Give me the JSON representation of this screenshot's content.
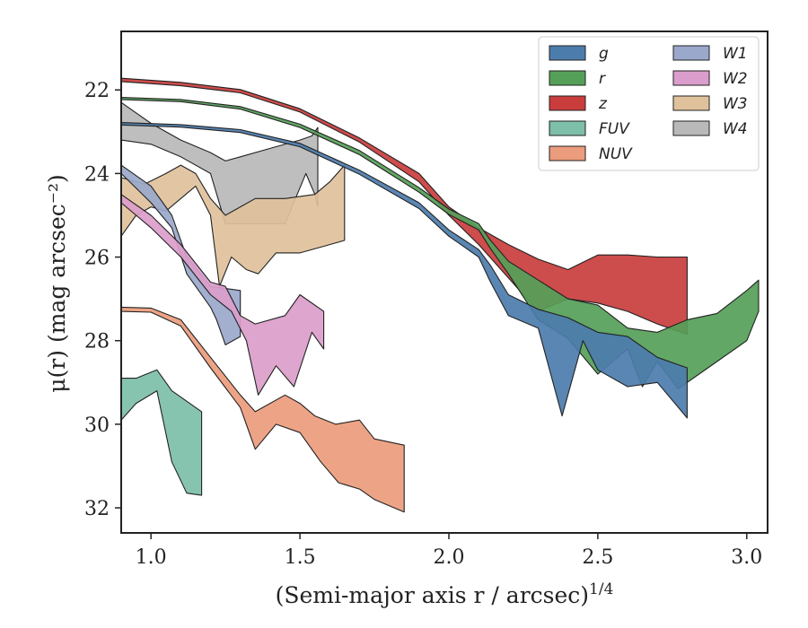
{
  "chart_data": {
    "type": "area",
    "title": "",
    "xlabel": "(Semi-major axis r / arcsec)",
    "xlabel_exponent": "1/4",
    "ylabel": "μ(r) (mag arcsec⁻²)",
    "xlim": [
      0.9,
      3.07
    ],
    "ylim": [
      32.6,
      20.6
    ],
    "y_inverted": true,
    "xticks": [
      "1.0",
      "1.5",
      "2.0",
      "2.5",
      "3.0"
    ],
    "xtick_values": [
      1.0,
      1.5,
      2.0,
      2.5,
      3.0
    ],
    "yticks": [
      "22",
      "24",
      "26",
      "28",
      "30",
      "32"
    ],
    "ytick_values": [
      22,
      24,
      26,
      28,
      30,
      32
    ],
    "grid": false,
    "legend_position": "top-right",
    "legend_columns": 2,
    "series": [
      {
        "name": "g",
        "color": "#4c7cac",
        "upper": [
          [
            0.9,
            22.78
          ],
          [
            1.1,
            22.83
          ],
          [
            1.3,
            22.95
          ],
          [
            1.5,
            23.28
          ],
          [
            1.7,
            23.92
          ],
          [
            1.9,
            24.7
          ],
          [
            2.0,
            25.35
          ],
          [
            2.1,
            25.82
          ],
          [
            2.14,
            26.2
          ],
          [
            2.2,
            26.9
          ],
          [
            2.3,
            27.25
          ],
          [
            2.4,
            27.45
          ],
          [
            2.5,
            27.8
          ],
          [
            2.6,
            27.9
          ],
          [
            2.7,
            28.4
          ],
          [
            2.8,
            28.65
          ]
        ],
        "lower": [
          [
            0.9,
            22.84
          ],
          [
            1.1,
            22.89
          ],
          [
            1.3,
            23.02
          ],
          [
            1.5,
            23.36
          ],
          [
            1.7,
            24.02
          ],
          [
            1.9,
            24.84
          ],
          [
            2.0,
            25.5
          ],
          [
            2.1,
            26.0
          ],
          [
            2.14,
            26.6
          ],
          [
            2.2,
            27.4
          ],
          [
            2.3,
            27.7
          ],
          [
            2.38,
            29.8
          ],
          [
            2.45,
            28.0
          ],
          [
            2.5,
            28.7
          ],
          [
            2.6,
            29.1
          ],
          [
            2.7,
            29.0
          ],
          [
            2.8,
            29.85
          ]
        ]
      },
      {
        "name": "r",
        "color": "#55a058",
        "upper": [
          [
            0.9,
            22.18
          ],
          [
            1.1,
            22.23
          ],
          [
            1.3,
            22.4
          ],
          [
            1.5,
            22.82
          ],
          [
            1.7,
            23.45
          ],
          [
            1.9,
            24.34
          ],
          [
            2.0,
            24.85
          ],
          [
            2.1,
            25.2
          ],
          [
            2.14,
            25.6
          ],
          [
            2.2,
            26.1
          ],
          [
            2.3,
            26.55
          ],
          [
            2.4,
            27.0
          ],
          [
            2.5,
            27.15
          ],
          [
            2.6,
            27.7
          ],
          [
            2.7,
            27.8
          ],
          [
            2.8,
            27.5
          ],
          [
            2.9,
            27.35
          ],
          [
            3.0,
            26.8
          ],
          [
            3.04,
            26.55
          ]
        ],
        "lower": [
          [
            0.9,
            22.23
          ],
          [
            1.1,
            22.28
          ],
          [
            1.3,
            22.46
          ],
          [
            1.5,
            22.9
          ],
          [
            1.7,
            23.55
          ],
          [
            1.9,
            24.45
          ],
          [
            2.0,
            24.98
          ],
          [
            2.1,
            25.35
          ],
          [
            2.14,
            25.8
          ],
          [
            2.2,
            26.4
          ],
          [
            2.3,
            27.5
          ],
          [
            2.4,
            27.95
          ],
          [
            2.5,
            28.8
          ],
          [
            2.6,
            28.2
          ],
          [
            2.65,
            29.1
          ],
          [
            2.7,
            28.5
          ],
          [
            2.77,
            29.15
          ],
          [
            2.9,
            28.5
          ],
          [
            3.0,
            28.0
          ],
          [
            3.04,
            27.3
          ]
        ]
      },
      {
        "name": "z",
        "color": "#c93d3d",
        "upper": [
          [
            0.9,
            21.72
          ],
          [
            1.1,
            21.82
          ],
          [
            1.3,
            21.99
          ],
          [
            1.5,
            22.45
          ],
          [
            1.7,
            23.15
          ],
          [
            1.9,
            24.0
          ],
          [
            2.0,
            24.8
          ],
          [
            2.1,
            25.3
          ],
          [
            2.2,
            25.7
          ],
          [
            2.3,
            26.05
          ],
          [
            2.4,
            26.3
          ],
          [
            2.5,
            25.95
          ],
          [
            2.6,
            25.95
          ],
          [
            2.7,
            26.0
          ],
          [
            2.8,
            26.0
          ]
        ],
        "lower": [
          [
            0.9,
            21.8
          ],
          [
            1.1,
            21.9
          ],
          [
            1.3,
            22.07
          ],
          [
            1.5,
            22.53
          ],
          [
            1.7,
            23.25
          ],
          [
            1.9,
            24.2
          ],
          [
            2.0,
            25.0
          ],
          [
            2.1,
            25.7
          ],
          [
            2.2,
            26.5
          ],
          [
            2.3,
            27.3
          ],
          [
            2.4,
            27.0
          ],
          [
            2.5,
            27.1
          ],
          [
            2.6,
            27.3
          ],
          [
            2.7,
            27.6
          ],
          [
            2.8,
            27.85
          ]
        ]
      },
      {
        "name": "FUV",
        "color": "#7dbfa8",
        "upper": [
          [
            0.9,
            28.9
          ],
          [
            0.95,
            28.9
          ],
          [
            1.02,
            28.7
          ],
          [
            1.07,
            29.2
          ],
          [
            1.17,
            29.7
          ]
        ],
        "lower": [
          [
            0.9,
            29.9
          ],
          [
            0.95,
            29.5
          ],
          [
            1.02,
            29.2
          ],
          [
            1.07,
            30.9
          ],
          [
            1.12,
            31.65
          ],
          [
            1.17,
            31.7
          ]
        ]
      },
      {
        "name": "NUV",
        "color": "#eb9c7c",
        "upper": [
          [
            0.9,
            27.2
          ],
          [
            1.0,
            27.22
          ],
          [
            1.1,
            27.5
          ],
          [
            1.2,
            28.4
          ],
          [
            1.3,
            29.3
          ],
          [
            1.35,
            29.7
          ],
          [
            1.45,
            29.3
          ],
          [
            1.5,
            29.5
          ],
          [
            1.55,
            29.8
          ],
          [
            1.62,
            30.0
          ],
          [
            1.7,
            29.9
          ],
          [
            1.75,
            30.35
          ],
          [
            1.85,
            30.5
          ]
        ],
        "lower": [
          [
            0.9,
            27.3
          ],
          [
            1.0,
            27.32
          ],
          [
            1.1,
            27.65
          ],
          [
            1.2,
            28.65
          ],
          [
            1.3,
            29.6
          ],
          [
            1.35,
            30.6
          ],
          [
            1.42,
            30.0
          ],
          [
            1.5,
            30.2
          ],
          [
            1.57,
            30.9
          ],
          [
            1.63,
            31.4
          ],
          [
            1.7,
            31.55
          ],
          [
            1.75,
            31.8
          ],
          [
            1.85,
            32.1
          ]
        ]
      },
      {
        "name": "W1",
        "color": "#9aa8cb",
        "upper": [
          [
            0.9,
            23.8
          ],
          [
            1.0,
            24.3
          ],
          [
            1.07,
            25.0
          ],
          [
            1.12,
            26.0
          ],
          [
            1.2,
            26.7
          ],
          [
            1.3,
            26.8
          ]
        ],
        "lower": [
          [
            0.9,
            24.0
          ],
          [
            1.0,
            24.7
          ],
          [
            1.07,
            25.3
          ],
          [
            1.12,
            26.4
          ],
          [
            1.2,
            27.2
          ],
          [
            1.22,
            27.5
          ],
          [
            1.25,
            28.1
          ],
          [
            1.3,
            27.9
          ]
        ]
      },
      {
        "name": "W2",
        "color": "#db9dcb",
        "upper": [
          [
            0.9,
            24.5
          ],
          [
            1.0,
            25.0
          ],
          [
            1.1,
            25.7
          ],
          [
            1.2,
            26.6
          ],
          [
            1.25,
            26.7
          ],
          [
            1.3,
            27.4
          ],
          [
            1.35,
            27.6
          ],
          [
            1.45,
            27.4
          ],
          [
            1.5,
            26.9
          ],
          [
            1.58,
            27.3
          ]
        ],
        "lower": [
          [
            0.9,
            24.7
          ],
          [
            1.0,
            25.3
          ],
          [
            1.1,
            26.0
          ],
          [
            1.2,
            26.9
          ],
          [
            1.27,
            27.3
          ],
          [
            1.32,
            28.0
          ],
          [
            1.36,
            29.3
          ],
          [
            1.42,
            28.6
          ],
          [
            1.48,
            29.1
          ],
          [
            1.54,
            27.8
          ],
          [
            1.58,
            28.2
          ]
        ]
      },
      {
        "name": "W3",
        "color": "#dfc19c",
        "upper": [
          [
            0.9,
            24.1
          ],
          [
            0.98,
            24.25
          ],
          [
            1.05,
            24.0
          ],
          [
            1.1,
            23.8
          ],
          [
            1.15,
            24.0
          ],
          [
            1.2,
            24.6
          ],
          [
            1.25,
            25.0
          ],
          [
            1.3,
            24.8
          ],
          [
            1.35,
            24.6
          ],
          [
            1.45,
            24.6
          ],
          [
            1.55,
            24.5
          ],
          [
            1.6,
            24.2
          ],
          [
            1.65,
            23.8
          ]
        ],
        "lower": [
          [
            0.9,
            25.5
          ],
          [
            0.95,
            25.0
          ],
          [
            1.0,
            24.8
          ],
          [
            1.05,
            24.9
          ],
          [
            1.1,
            24.6
          ],
          [
            1.15,
            24.3
          ],
          [
            1.2,
            25.0
          ],
          [
            1.23,
            26.7
          ],
          [
            1.27,
            26.0
          ],
          [
            1.32,
            26.3
          ],
          [
            1.36,
            26.4
          ],
          [
            1.42,
            25.9
          ],
          [
            1.5,
            25.9
          ],
          [
            1.6,
            25.7
          ],
          [
            1.65,
            25.6
          ]
        ]
      },
      {
        "name": "W4",
        "color": "#b9b9b9",
        "upper": [
          [
            0.9,
            22.3
          ],
          [
            1.0,
            22.8
          ],
          [
            1.1,
            23.2
          ],
          [
            1.2,
            23.5
          ],
          [
            1.25,
            23.7
          ],
          [
            1.3,
            23.6
          ],
          [
            1.4,
            23.4
          ],
          [
            1.5,
            23.2
          ],
          [
            1.54,
            23.1
          ],
          [
            1.56,
            22.9
          ]
        ],
        "lower": [
          [
            0.9,
            23.2
          ],
          [
            1.0,
            23.3
          ],
          [
            1.1,
            23.6
          ],
          [
            1.2,
            24.0
          ],
          [
            1.25,
            25.2
          ],
          [
            1.35,
            25.2
          ],
          [
            1.45,
            25.2
          ],
          [
            1.52,
            24.0
          ],
          [
            1.55,
            24.5
          ],
          [
            1.56,
            24.8
          ]
        ]
      }
    ],
    "legend": {
      "column1": [
        "g",
        "r",
        "z",
        "FUV",
        "NUV"
      ],
      "column2": [
        "W1",
        "W2",
        "W3",
        "W4"
      ]
    }
  }
}
